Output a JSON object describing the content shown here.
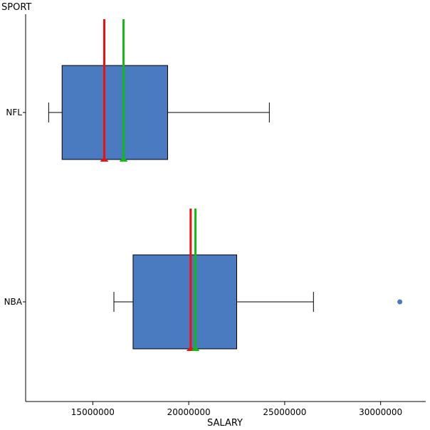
{
  "chart_data": {
    "type": "boxplot",
    "orientation": "horizontal",
    "xlabel": "SALARY",
    "ylabel": "SPORT",
    "xlim": [
      11500000,
      32350000
    ],
    "x_ticks": [
      15000000,
      20000000,
      25000000,
      30000000
    ],
    "x_tick_labels": [
      "15000000",
      "20000000",
      "25000000",
      "30000000"
    ],
    "categories": [
      "NFL",
      "NBA"
    ],
    "grid": false,
    "colors": {
      "box_fill": "#4a7abf",
      "outlier": "#4a7abf",
      "marker_red": "#ee1111",
      "marker_green": "#11bb11",
      "axis": "#000000"
    },
    "boxes": [
      {
        "category": "NFL",
        "whisker_low": 12700000,
        "q1": 13400000,
        "q3": 18900000,
        "whisker_high": 24200000,
        "outliers": [],
        "red_marker": 15600000,
        "green_marker": 16600000
      },
      {
        "category": "NBA",
        "whisker_low": 16100000,
        "q1": 17100000,
        "q3": 22500000,
        "whisker_high": 26500000,
        "outliers": [
          31000000
        ],
        "red_marker": 20100000,
        "green_marker": 20350000
      }
    ]
  }
}
